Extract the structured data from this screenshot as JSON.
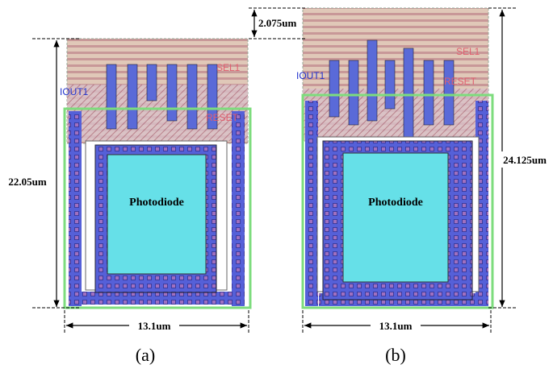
{
  "panels": [
    {
      "label": "(a)",
      "photodiode": "Photodiode",
      "port": "IOUT1",
      "signals": [
        "SEL1",
        "RESET"
      ],
      "height": "22.05um",
      "width": "13.1um"
    },
    {
      "label": "(b)",
      "photodiode": "Photodiode",
      "port": "IOUT1",
      "signals": [
        "SEL1",
        "RESET"
      ],
      "offset": "2.075um",
      "height": "24.125um",
      "width": "13.1um"
    }
  ]
}
